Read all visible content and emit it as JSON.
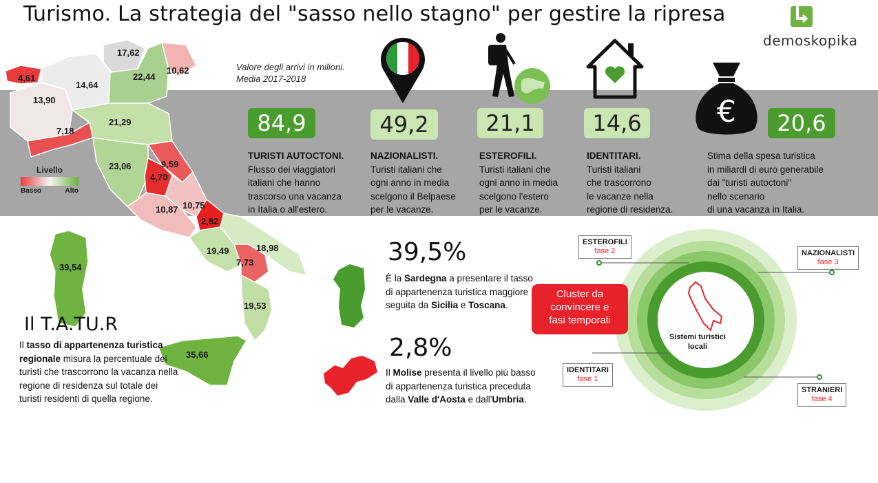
{
  "title": "Turismo. La strategia del \"sasso nello stagno\" per gestire la ripresa",
  "logo": {
    "text": "demoskopika",
    "icon": "brand-logo-icon"
  },
  "arrivi_note": {
    "line1": "Valore degli arrivi in milioni.",
    "line2": "Media 2017-2018"
  },
  "map": {
    "regions": [
      {
        "name": "valle-daosta",
        "value": "4,61"
      },
      {
        "name": "trentino",
        "value": "17,62"
      },
      {
        "name": "lombardia",
        "value": "14,64"
      },
      {
        "name": "veneto",
        "value": "22,44"
      },
      {
        "name": "friuli",
        "value": "10,62"
      },
      {
        "name": "piemonte",
        "value": "13,90"
      },
      {
        "name": "liguria",
        "value": "7,18"
      },
      {
        "name": "emilia-romagna",
        "value": "21,29"
      },
      {
        "name": "toscana",
        "value": "23,06"
      },
      {
        "name": "marche",
        "value": "9,59"
      },
      {
        "name": "umbria",
        "value": "4,70"
      },
      {
        "name": "lazio",
        "value": "10,87"
      },
      {
        "name": "abruzzo",
        "value": "10,75"
      },
      {
        "name": "molise",
        "value": "2,82"
      },
      {
        "name": "campania",
        "value": "19,49"
      },
      {
        "name": "puglia",
        "value": "18,98"
      },
      {
        "name": "basilicata",
        "value": "7,73"
      },
      {
        "name": "calabria",
        "value": "19,53"
      },
      {
        "name": "sardegna",
        "value": "39,54"
      },
      {
        "name": "sicilia",
        "value": "35,66"
      }
    ],
    "legend": {
      "title": "Livello",
      "low": "Basso",
      "high": "Alto"
    }
  },
  "stats": [
    {
      "value": "84,9",
      "heading": "TURISTI AUTOCTONI.",
      "lines": [
        "Flusso dei viaggiatori",
        "italiani che hanno",
        "trascorso una vacanza",
        "in Italia o all'estero."
      ]
    },
    {
      "value": "49,2",
      "heading": "NAZIONALISTI.",
      "lines": [
        "Turisti italiani che",
        "ogni anno in media",
        "scelgono il Belpaese",
        "per le vacanze."
      ]
    },
    {
      "value": "21,1",
      "heading": "ESTEROFILI.",
      "lines": [
        "Turisti italiani che",
        "ogni anno in media",
        "scelgono l'estero",
        "per le vacanze."
      ]
    },
    {
      "value": "14,6",
      "heading": "IDENTITARI.",
      "lines": [
        "Turisti italiani",
        "che trascorrono",
        "le vacanze nella",
        "regione di residenza."
      ]
    },
    {
      "value": "20,6",
      "lines": [
        "Stima della spesa turistica",
        "in miliardi di euro generabile",
        "dai \"turisti autoctoni\"",
        "nello scenario",
        "di una vacanza in Italia."
      ]
    }
  ],
  "tatur": {
    "title": "Il T.A.TU.R",
    "bold1": "tasso di appartenenza turistica regionale",
    "prefix": "Il ",
    "text": " misura la percentuale dei turisti che trascorrono la vacanza nella regione di residenza sul totale dei turisti residenti di quella regione."
  },
  "highlights": {
    "high": {
      "pct": "39,5%",
      "t1": "È la ",
      "b1": "Sardegna",
      "t2": " a presentare il tasso di appartenenza turistica maggiore seguita da ",
      "b2": "Sicilia",
      "t3": " e ",
      "b3": "Toscana",
      "t4": "."
    },
    "low": {
      "pct": "2,8%",
      "t1": "Il ",
      "b1": "Molise",
      "t2": " presenta il livello più basso di appartenenza turistica preceduta dalla ",
      "b2": "Valle d'Aosta",
      "t3": " e dall'",
      "b3": "Umbria",
      "t4": "."
    }
  },
  "cluster": {
    "label": [
      "Cluster da",
      "convincere e",
      "fasi temporali"
    ],
    "center": [
      "Sistemi turistici",
      "locali"
    ],
    "phases": [
      {
        "name": "ESTEROFILI",
        "fase": "fase 2"
      },
      {
        "name": "NAZIONALISTI",
        "fase": "fase 3"
      },
      {
        "name": "IDENTITARI",
        "fase": "fase 1"
      },
      {
        "name": "STRANIERI",
        "fase": "fase 4"
      }
    ]
  },
  "colors": {
    "green_dark": "#4a9c2f",
    "green_light": "#c9e6b3",
    "red": "#e8222b",
    "band": "#a6a6a6"
  }
}
